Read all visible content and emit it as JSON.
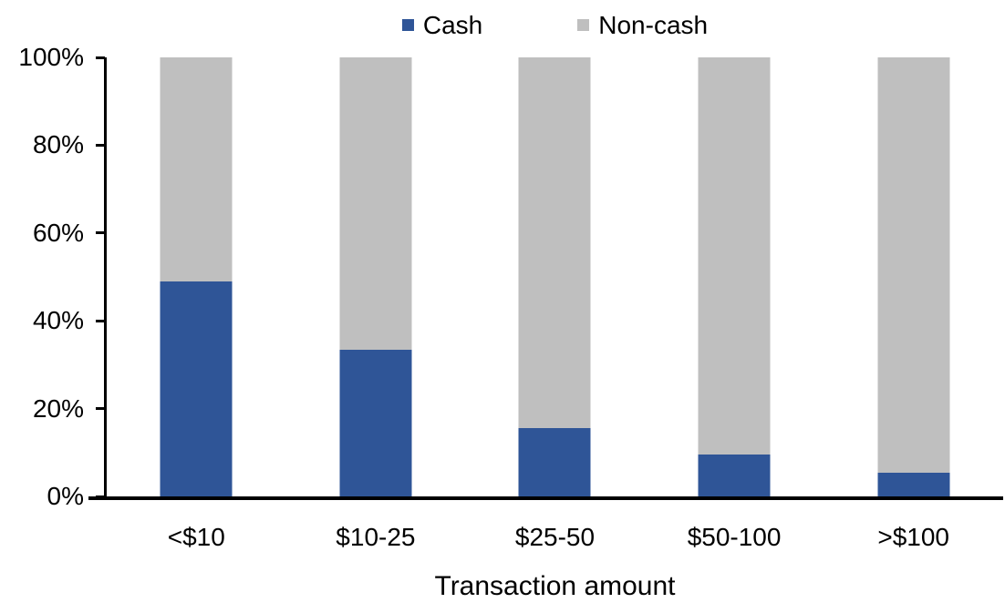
{
  "chart_data": {
    "type": "bar",
    "stacked": true,
    "title": "",
    "xlabel": "Transaction amount",
    "ylabel": "",
    "categories": [
      "<$10",
      "$10-25",
      "$25-50",
      "$50-100",
      ">$100"
    ],
    "series": [
      {
        "name": "Cash",
        "color": "#2F5597",
        "values": [
          49,
          33.5,
          15.5,
          9.5,
          5.5
        ]
      },
      {
        "name": "Non-cash",
        "color": "#BFBFBF",
        "values": [
          51,
          66.5,
          84.5,
          90.5,
          94.5
        ]
      }
    ],
    "ylim": [
      0,
      100
    ],
    "ytick_values": [
      0,
      20,
      40,
      60,
      80,
      100
    ],
    "ytick_labels": [
      "0%",
      "20%",
      "40%",
      "60%",
      "80%",
      "100%"
    ],
    "grid": false,
    "legend_position": "top",
    "axis_color": "#000000",
    "text_color": "#000000",
    "background_color": "#FFFFFF"
  }
}
